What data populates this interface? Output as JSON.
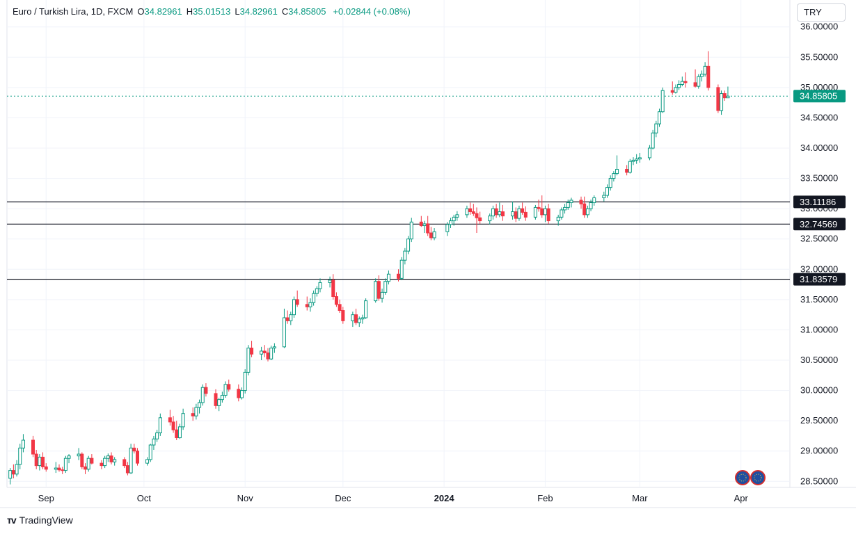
{
  "header": {
    "symbol": "Euro / Turkish Lira, 1D, FXCM",
    "o_label": "O",
    "o_value": "34.82961",
    "h_label": "H",
    "h_value": "35.01513",
    "l_label": "L",
    "l_value": "34.82961",
    "c_label": "C",
    "c_value": "34.85805",
    "change": "+0.02844 (+0.08%)"
  },
  "currency": "TRY",
  "brand": "TradingView",
  "colors": {
    "up": "#089981",
    "down": "#f23645",
    "accent": "#089981",
    "line": "#131722"
  },
  "chart_data": {
    "type": "candlestick",
    "ylim": [
      28.4,
      36.1
    ],
    "y_ticks": [
      "28.50000",
      "29.00000",
      "29.50000",
      "30.00000",
      "30.50000",
      "31.00000",
      "31.50000",
      "32.00000",
      "32.50000",
      "33.00000",
      "33.50000",
      "34.00000",
      "34.50000",
      "35.00000",
      "35.50000",
      "36.00000"
    ],
    "x_labels": [
      {
        "label": "Sep",
        "date": "2023-09-01"
      },
      {
        "label": "Oct",
        "date": "2023-10-01"
      },
      {
        "label": "Nov",
        "date": "2023-11-01"
      },
      {
        "label": "Dec",
        "date": "2023-12-01"
      },
      {
        "label": "2024",
        "date": "2024-01-01",
        "bold": true
      },
      {
        "label": "Feb",
        "date": "2024-02-01"
      },
      {
        "label": "Mar",
        "date": "2024-03-01"
      },
      {
        "label": "Apr",
        "date": "2024-04-01"
      }
    ],
    "x_range": [
      "2023-08-20",
      "2024-04-16"
    ],
    "current_price": {
      "value": 34.85805,
      "label": "34.85805"
    },
    "horizontal_lines": [
      {
        "value": 33.11186,
        "label": "33.11186"
      },
      {
        "value": 32.74569,
        "label": "32.74569"
      },
      {
        "value": 31.83579,
        "label": "31.83579"
      }
    ],
    "candles": [
      [
        "2023-08-21",
        28.55,
        28.72,
        28.45,
        28.68
      ],
      [
        "2023-08-22",
        28.68,
        28.78,
        28.55,
        28.62
      ],
      [
        "2023-08-23",
        28.62,
        28.85,
        28.58,
        28.78
      ],
      [
        "2023-08-24",
        28.78,
        29.12,
        28.7,
        29.05
      ],
      [
        "2023-08-25",
        29.05,
        29.28,
        28.98,
        29.18
      ],
      [
        "2023-08-28",
        29.18,
        29.25,
        28.9,
        28.95
      ],
      [
        "2023-08-29",
        28.95,
        29.02,
        28.7,
        28.76
      ],
      [
        "2023-08-30",
        28.76,
        28.95,
        28.68,
        28.9
      ],
      [
        "2023-08-31",
        28.9,
        28.98,
        28.7,
        28.74
      ],
      [
        "2023-09-01",
        28.74,
        28.8,
        28.66,
        28.7
      ],
      [
        "2023-09-04",
        28.7,
        28.82,
        28.64,
        28.72
      ],
      [
        "2023-09-05",
        28.72,
        28.78,
        28.66,
        28.69
      ],
      [
        "2023-09-06",
        28.69,
        28.74,
        28.62,
        28.68
      ],
      [
        "2023-09-07",
        28.68,
        28.92,
        28.64,
        28.88
      ],
      [
        "2023-09-08",
        28.88,
        28.95,
        28.8,
        28.92
      ],
      [
        "2023-09-11",
        28.92,
        29.05,
        28.85,
        28.95
      ],
      [
        "2023-09-12",
        28.95,
        28.98,
        28.7,
        28.74
      ],
      [
        "2023-09-13",
        28.74,
        28.8,
        28.62,
        28.7
      ],
      [
        "2023-09-14",
        28.7,
        28.92,
        28.66,
        28.88
      ],
      [
        "2023-09-15",
        28.88,
        28.95,
        28.78,
        28.8
      ],
      [
        "2023-09-18",
        28.8,
        28.85,
        28.7,
        28.76
      ],
      [
        "2023-09-19",
        28.76,
        28.92,
        28.72,
        28.88
      ],
      [
        "2023-09-20",
        28.88,
        28.96,
        28.82,
        28.92
      ],
      [
        "2023-09-21",
        28.92,
        28.98,
        28.78,
        28.82
      ],
      [
        "2023-09-22",
        28.82,
        28.9,
        28.76,
        28.86
      ],
      [
        "2023-09-25",
        28.86,
        28.9,
        28.72,
        28.76
      ],
      [
        "2023-09-26",
        28.76,
        28.82,
        28.6,
        28.64
      ],
      [
        "2023-09-27",
        28.64,
        29.12,
        28.62,
        29.05
      ],
      [
        "2023-09-28",
        29.05,
        29.12,
        28.96,
        29.0
      ],
      [
        "2023-09-29",
        29.0,
        29.05,
        28.76,
        28.8
      ],
      [
        "2023-10-02",
        28.8,
        28.9,
        28.76,
        28.86
      ],
      [
        "2023-10-03",
        28.86,
        29.12,
        28.82,
        29.1
      ],
      [
        "2023-10-04",
        29.1,
        29.25,
        29.02,
        29.2
      ],
      [
        "2023-10-05",
        29.2,
        29.35,
        29.15,
        29.3
      ],
      [
        "2023-10-06",
        29.3,
        29.62,
        29.25,
        29.55
      ],
      [
        "2023-10-09",
        29.55,
        29.68,
        29.42,
        29.48
      ],
      [
        "2023-10-10",
        29.48,
        29.58,
        29.3,
        29.35
      ],
      [
        "2023-10-11",
        29.35,
        29.5,
        29.18,
        29.22
      ],
      [
        "2023-10-12",
        29.22,
        29.45,
        29.2,
        29.4
      ],
      [
        "2023-10-13",
        29.4,
        29.7,
        29.35,
        29.62
      ],
      [
        "2023-10-16",
        29.62,
        29.72,
        29.5,
        29.58
      ],
      [
        "2023-10-17",
        29.58,
        29.78,
        29.52,
        29.72
      ],
      [
        "2023-10-18",
        29.72,
        29.85,
        29.62,
        29.8
      ],
      [
        "2023-10-19",
        29.8,
        30.1,
        29.75,
        30.05
      ],
      [
        "2023-10-20",
        30.05,
        30.12,
        29.9,
        29.95
      ],
      [
        "2023-10-23",
        29.95,
        30.02,
        29.7,
        29.75
      ],
      [
        "2023-10-24",
        29.75,
        29.88,
        29.66,
        29.85
      ],
      [
        "2023-10-25",
        29.85,
        29.98,
        29.8,
        29.92
      ],
      [
        "2023-10-26",
        29.92,
        30.15,
        29.88,
        30.1
      ],
      [
        "2023-10-27",
        30.1,
        30.18,
        29.98,
        30.02
      ],
      [
        "2023-10-30",
        30.02,
        30.1,
        29.82,
        29.88
      ],
      [
        "2023-10-31",
        29.88,
        30.05,
        29.85,
        30.0
      ],
      [
        "2023-11-01",
        30.0,
        30.35,
        29.95,
        30.3
      ],
      [
        "2023-11-02",
        30.3,
        30.75,
        30.25,
        30.7
      ],
      [
        "2023-11-03",
        30.7,
        30.82,
        30.55,
        30.6
      ],
      [
        "2023-11-06",
        30.6,
        30.72,
        30.5,
        30.65
      ],
      [
        "2023-11-07",
        30.65,
        30.75,
        30.55,
        30.62
      ],
      [
        "2023-11-08",
        30.62,
        30.7,
        30.48,
        30.52
      ],
      [
        "2023-11-09",
        30.52,
        30.74,
        30.5,
        30.7
      ],
      [
        "2023-11-10",
        30.7,
        30.78,
        30.62,
        30.72
      ],
      [
        "2023-11-13",
        30.72,
        31.35,
        30.7,
        31.2
      ],
      [
        "2023-11-14",
        31.2,
        31.32,
        31.1,
        31.15
      ],
      [
        "2023-11-15",
        31.15,
        31.3,
        31.08,
        31.25
      ],
      [
        "2023-11-16",
        31.25,
        31.55,
        31.2,
        31.5
      ],
      [
        "2023-11-17",
        31.5,
        31.65,
        31.38,
        31.42
      ],
      [
        "2023-11-20",
        31.42,
        31.55,
        31.32,
        31.38
      ],
      [
        "2023-11-21",
        31.38,
        31.52,
        31.3,
        31.45
      ],
      [
        "2023-11-22",
        31.45,
        31.65,
        31.4,
        31.6
      ],
      [
        "2023-11-23",
        31.6,
        31.72,
        31.55,
        31.68
      ],
      [
        "2023-11-24",
        31.68,
        31.85,
        31.62,
        31.78
      ],
      [
        "2023-11-27",
        31.78,
        31.88,
        31.7,
        31.82
      ],
      [
        "2023-11-28",
        31.82,
        31.92,
        31.5,
        31.55
      ],
      [
        "2023-11-29",
        31.55,
        31.62,
        31.38,
        31.42
      ],
      [
        "2023-11-30",
        31.42,
        31.5,
        31.28,
        31.32
      ],
      [
        "2023-12-01",
        31.32,
        31.38,
        31.1,
        31.15
      ],
      [
        "2023-12-04",
        31.15,
        31.3,
        31.05,
        31.25
      ],
      [
        "2023-12-05",
        31.25,
        31.35,
        31.08,
        31.12
      ],
      [
        "2023-12-06",
        31.12,
        31.22,
        31.05,
        31.18
      ],
      [
        "2023-12-07",
        31.18,
        31.25,
        31.1,
        31.2
      ],
      [
        "2023-12-08",
        31.2,
        31.52,
        31.18,
        31.48
      ],
      [
        "2023-12-11",
        31.48,
        31.85,
        31.45,
        31.8
      ],
      [
        "2023-12-12",
        31.8,
        31.9,
        31.48,
        31.52
      ],
      [
        "2023-12-13",
        31.52,
        31.68,
        31.45,
        31.62
      ],
      [
        "2023-12-14",
        31.62,
        31.85,
        31.58,
        31.8
      ],
      [
        "2023-12-15",
        31.8,
        31.98,
        31.75,
        31.92
      ],
      [
        "2023-12-18",
        31.92,
        32.0,
        31.8,
        31.85
      ],
      [
        "2023-12-19",
        31.85,
        32.2,
        31.82,
        32.15
      ],
      [
        "2023-12-20",
        32.15,
        32.35,
        32.08,
        32.3
      ],
      [
        "2023-12-21",
        32.3,
        32.55,
        32.25,
        32.5
      ],
      [
        "2023-12-22",
        32.5,
        32.85,
        32.45,
        32.78
      ],
      [
        "2023-12-25",
        32.78,
        32.88,
        32.7,
        32.72
      ],
      [
        "2023-12-26",
        32.72,
        32.8,
        32.6,
        32.75
      ],
      [
        "2023-12-27",
        32.75,
        32.88,
        32.55,
        32.6
      ],
      [
        "2023-12-28",
        32.6,
        32.7,
        32.48,
        32.52
      ],
      [
        "2023-12-29",
        32.52,
        32.68,
        32.48,
        32.62
      ],
      [
        "2024-01-02",
        32.62,
        32.78,
        32.55,
        32.74
      ],
      [
        "2024-01-03",
        32.74,
        32.85,
        32.68,
        32.8
      ],
      [
        "2024-01-04",
        32.8,
        32.9,
        32.72,
        32.86
      ],
      [
        "2024-01-05",
        32.86,
        32.96,
        32.8,
        32.9
      ],
      [
        "2024-01-08",
        32.9,
        33.05,
        32.85,
        33.0
      ],
      [
        "2024-01-09",
        33.0,
        33.1,
        32.9,
        32.95
      ],
      [
        "2024-01-10",
        32.95,
        33.08,
        32.88,
        32.92
      ],
      [
        "2024-01-11",
        32.92,
        33.02,
        32.6,
        32.85
      ],
      [
        "2024-01-12",
        32.85,
        32.95,
        32.75,
        32.8
      ],
      [
        "2024-01-15",
        32.8,
        32.92,
        32.74,
        32.88
      ],
      [
        "2024-01-16",
        32.88,
        33.05,
        32.82,
        33.0
      ],
      [
        "2024-01-17",
        33.0,
        33.08,
        32.85,
        32.9
      ],
      [
        "2024-01-18",
        32.9,
        33.1,
        32.86,
        32.95
      ],
      [
        "2024-01-19",
        32.95,
        33.06,
        32.8,
        32.88
      ],
      [
        "2024-01-22",
        32.88,
        33.12,
        32.82,
        32.95
      ],
      [
        "2024-01-23",
        32.95,
        33.02,
        32.78,
        32.84
      ],
      [
        "2024-01-24",
        32.84,
        33.05,
        32.8,
        33.0
      ],
      [
        "2024-01-25",
        33.0,
        33.1,
        32.9,
        32.94
      ],
      [
        "2024-01-26",
        32.94,
        33.04,
        32.8,
        32.86
      ],
      [
        "2024-01-29",
        32.86,
        33.06,
        32.82,
        33.02
      ],
      [
        "2024-01-30",
        33.02,
        33.15,
        32.95,
        33.0
      ],
      [
        "2024-01-31",
        33.0,
        33.22,
        32.85,
        32.9
      ],
      [
        "2024-02-01",
        32.9,
        33.05,
        32.78,
        33.0
      ],
      [
        "2024-02-02",
        33.0,
        33.08,
        32.75,
        32.8
      ],
      [
        "2024-02-05",
        32.8,
        32.9,
        32.72,
        32.86
      ],
      [
        "2024-02-06",
        32.86,
        33.02,
        32.82,
        32.98
      ],
      [
        "2024-02-07",
        32.98,
        33.08,
        32.92,
        33.02
      ],
      [
        "2024-02-08",
        33.02,
        33.15,
        32.98,
        33.1
      ],
      [
        "2024-02-09",
        33.1,
        33.18,
        33.02,
        33.14
      ],
      [
        "2024-02-12",
        33.14,
        33.2,
        33.0,
        33.08
      ],
      [
        "2024-02-13",
        33.08,
        33.2,
        32.85,
        32.9
      ],
      [
        "2024-02-14",
        32.9,
        33.05,
        32.85,
        33.0
      ],
      [
        "2024-02-15",
        33.0,
        33.15,
        32.96,
        33.1
      ],
      [
        "2024-02-16",
        33.1,
        33.22,
        33.05,
        33.18
      ],
      [
        "2024-02-19",
        33.18,
        33.28,
        33.12,
        33.22
      ],
      [
        "2024-02-20",
        33.22,
        33.4,
        33.18,
        33.35
      ],
      [
        "2024-02-21",
        33.35,
        33.55,
        33.3,
        33.5
      ],
      [
        "2024-02-22",
        33.5,
        33.62,
        33.45,
        33.58
      ],
      [
        "2024-02-23",
        33.58,
        33.88,
        33.55,
        33.65
      ],
      [
        "2024-02-26",
        33.65,
        33.72,
        33.55,
        33.6
      ],
      [
        "2024-02-27",
        33.6,
        33.82,
        33.58,
        33.78
      ],
      [
        "2024-02-28",
        33.78,
        33.85,
        33.72,
        33.8
      ],
      [
        "2024-02-29",
        33.8,
        33.9,
        33.74,
        33.82
      ],
      [
        "2024-03-01",
        33.82,
        33.92,
        33.76,
        33.84
      ],
      [
        "2024-03-04",
        33.84,
        34.05,
        33.8,
        34.0
      ],
      [
        "2024-03-05",
        34.0,
        34.3,
        33.98,
        34.25
      ],
      [
        "2024-03-06",
        34.25,
        34.45,
        34.18,
        34.4
      ],
      [
        "2024-03-07",
        34.4,
        34.65,
        34.35,
        34.6
      ],
      [
        "2024-03-08",
        34.6,
        35.0,
        34.58,
        34.95
      ],
      [
        "2024-03-11",
        34.95,
        35.1,
        34.88,
        34.92
      ],
      [
        "2024-03-12",
        34.92,
        35.05,
        34.9,
        35.0
      ],
      [
        "2024-03-13",
        35.0,
        35.12,
        34.96,
        35.05
      ],
      [
        "2024-03-14",
        35.05,
        35.18,
        35.02,
        35.1
      ],
      [
        "2024-03-15",
        35.1,
        35.25,
        35.0,
        35.08
      ],
      [
        "2024-03-18",
        35.08,
        35.3,
        35.0,
        35.02
      ],
      [
        "2024-03-19",
        35.02,
        35.22,
        34.98,
        35.18
      ],
      [
        "2024-03-20",
        35.18,
        35.28,
        35.1,
        35.22
      ],
      [
        "2024-03-21",
        35.22,
        35.42,
        35.18,
        35.35
      ],
      [
        "2024-03-22",
        35.35,
        35.6,
        34.95,
        35.0
      ],
      [
        "2024-03-25",
        35.0,
        35.05,
        34.58,
        34.62
      ],
      [
        "2024-03-26",
        34.62,
        34.95,
        34.55,
        34.9
      ],
      [
        "2024-03-27",
        34.9,
        34.95,
        34.78,
        34.83
      ],
      [
        "2024-03-28",
        34.82961,
        35.01513,
        34.82961,
        34.85805
      ]
    ]
  }
}
